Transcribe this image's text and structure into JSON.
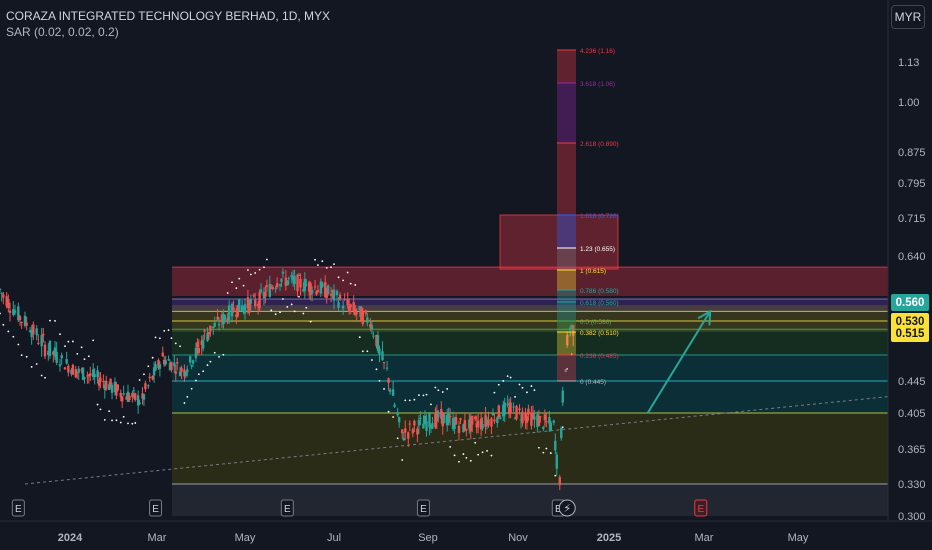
{
  "header": {
    "title": "CORAZA INTEGRATED TECHNOLOGY BERHAD, 1D, MYX",
    "indicator": "SAR (0.02, 0.02, 0.2)",
    "currency": "MYR"
  },
  "price_badges": [
    {
      "label": "0.560",
      "bg": "#26a69a",
      "fg": "#ffffff"
    },
    {
      "label": "0.530",
      "bg": "#fbe035",
      "fg": "#131722"
    },
    {
      "label": "0.515",
      "bg": "#fbe035",
      "fg": "#131722"
    }
  ],
  "event_markers": [
    {
      "label": "E",
      "date": "2023-12-01",
      "kind": "earnings"
    },
    {
      "label": "E",
      "date": "2024-02-29",
      "kind": "earnings"
    },
    {
      "label": "E",
      "date": "2024-05-30",
      "kind": "earnings"
    },
    {
      "label": "E",
      "date": "2024-08-29",
      "kind": "earnings"
    },
    {
      "label": "E",
      "date": "2024-11-28",
      "kind": "earnings"
    },
    {
      "label": "⚡",
      "date": "2024-12-04",
      "kind": "news"
    },
    {
      "label": "E",
      "date": "2025-02-27",
      "kind": "upcoming-earnings"
    }
  ],
  "fib_labels": [
    {
      "text": "4.236 (1.16)",
      "color": "#f23645"
    },
    {
      "text": "3.618 (1.06)",
      "color": "#9c27b0"
    },
    {
      "text": "2.618 (0.890)",
      "color": "#f23645"
    },
    {
      "text": "1.618 (0.720)",
      "color": "#2962ff"
    },
    {
      "text": "1.23 (0.655)",
      "color": "#ffffff"
    },
    {
      "text": "1 (0.615)",
      "color": "#fbe035"
    },
    {
      "text": "0.786 (0.580)",
      "color": "#26a69a"
    },
    {
      "text": "0.618 (0.560)",
      "color": "#26a69a"
    },
    {
      "text": "0.5 (0.530)",
      "color": "#4caf50"
    },
    {
      "text": "0.382 (0.510)",
      "color": "#fbe035"
    },
    {
      "text": "0.236 (0.485)",
      "color": "#f23645"
    },
    {
      "text": "0 (0.445)",
      "color": "#b2b5be"
    }
  ],
  "colors": {
    "background": "#131722",
    "up": "#26a69a",
    "down": "#ef5350",
    "sar": "#ffffff",
    "arrow": "#26a69a"
  },
  "chart_data": {
    "type": "candlestick",
    "title": "CORAZA INTEGRATED TECHNOLOGY BERHAD, 1D, MYX",
    "x_tick_labels": [
      "2024",
      "Mar",
      "May",
      "Jul",
      "Sep",
      "Nov",
      "2025",
      "Mar",
      "May"
    ],
    "y_tick_labels": [
      "1.13",
      "1.00",
      "0.875",
      "0.795",
      "0.715",
      "0.640",
      "0.445",
      "0.405",
      "0.365",
      "0.330",
      "0.300"
    ],
    "y_scale": "log",
    "ylim": [
      0.3,
      1.16
    ],
    "xlim": [
      "2023-11-20",
      "2025-06-30"
    ],
    "last_price": 0.56,
    "series": [
      {
        "date": "2023-11-20",
        "close": 0.58
      },
      {
        "date": "2023-12-01",
        "close": 0.54
      },
      {
        "date": "2023-12-15",
        "close": 0.5
      },
      {
        "date": "2024-01-05",
        "close": 0.46
      },
      {
        "date": "2024-01-20",
        "close": 0.45
      },
      {
        "date": "2024-02-05",
        "close": 0.43
      },
      {
        "date": "2024-02-20",
        "close": 0.42
      },
      {
        "date": "2024-03-05",
        "close": 0.48
      },
      {
        "date": "2024-03-20",
        "close": 0.46
      },
      {
        "date": "2024-04-05",
        "close": 0.51
      },
      {
        "date": "2024-04-25",
        "close": 0.55
      },
      {
        "date": "2024-05-10",
        "close": 0.56
      },
      {
        "date": "2024-05-25",
        "close": 0.6
      },
      {
        "date": "2024-06-10",
        "close": 0.59
      },
      {
        "date": "2024-06-25",
        "close": 0.58
      },
      {
        "date": "2024-07-10",
        "close": 0.555
      },
      {
        "date": "2024-07-25",
        "close": 0.53
      },
      {
        "date": "2024-08-05",
        "close": 0.46
      },
      {
        "date": "2024-08-15",
        "close": 0.38
      },
      {
        "date": "2024-08-25",
        "close": 0.39
      },
      {
        "date": "2024-09-10",
        "close": 0.4
      },
      {
        "date": "2024-09-25",
        "close": 0.39
      },
      {
        "date": "2024-10-10",
        "close": 0.395
      },
      {
        "date": "2024-10-25",
        "close": 0.41
      },
      {
        "date": "2024-11-10",
        "close": 0.4
      },
      {
        "date": "2024-11-25",
        "close": 0.39
      },
      {
        "date": "2024-11-29",
        "close": 0.335
      },
      {
        "date": "2024-12-03",
        "close": 0.47
      },
      {
        "date": "2024-12-06",
        "close": 0.52
      },
      {
        "date": "2024-12-10",
        "close": 0.515
      }
    ],
    "fib_levels": [
      {
        "ratio": 0,
        "price": 0.445
      },
      {
        "ratio": 0.236,
        "price": 0.485
      },
      {
        "ratio": 0.382,
        "price": 0.51
      },
      {
        "ratio": 0.5,
        "price": 0.53
      },
      {
        "ratio": 0.618,
        "price": 0.56
      },
      {
        "ratio": 0.786,
        "price": 0.58
      },
      {
        "ratio": 1,
        "price": 0.615
      },
      {
        "ratio": 1.23,
        "price": 0.655
      },
      {
        "ratio": 1.618,
        "price": 0.72
      },
      {
        "ratio": 2.618,
        "price": 0.89
      },
      {
        "ratio": 3.618,
        "price": 1.06
      },
      {
        "ratio": 4.236,
        "price": 1.16
      }
    ],
    "drawn_zones": [
      {
        "name": "red zone",
        "from": 0.57,
        "to": 0.62,
        "color": "#f23645"
      },
      {
        "name": "purple zone",
        "from": 0.545,
        "to": 0.565,
        "color": "#673ab7"
      },
      {
        "name": "olive zone",
        "from": 0.51,
        "to": 0.555,
        "color": "#827717"
      },
      {
        "name": "green zone",
        "from": 0.485,
        "to": 0.515,
        "color": "#1b5e20"
      },
      {
        "name": "teal zone",
        "from": 0.405,
        "to": 0.485,
        "color": "#006064"
      },
      {
        "name": "dark olive zone",
        "from": 0.33,
        "to": 0.405,
        "color": "#5d5a00"
      },
      {
        "name": "grey zone",
        "from": 0.3,
        "to": 0.33,
        "color": "#434651"
      }
    ],
    "target_box": {
      "from": 0.615,
      "to": 0.72,
      "color": "#f23645"
    },
    "trendline": {
      "from": {
        "date": "2023-12-05",
        "price": 0.33
      },
      "to": {
        "date": "2025-06-30",
        "price": 0.425
      }
    },
    "arrow": {
      "from": {
        "date": "2025-01-25",
        "price": 0.405
      },
      "to": {
        "date": "2025-03-05",
        "price": 0.545
      }
    }
  }
}
